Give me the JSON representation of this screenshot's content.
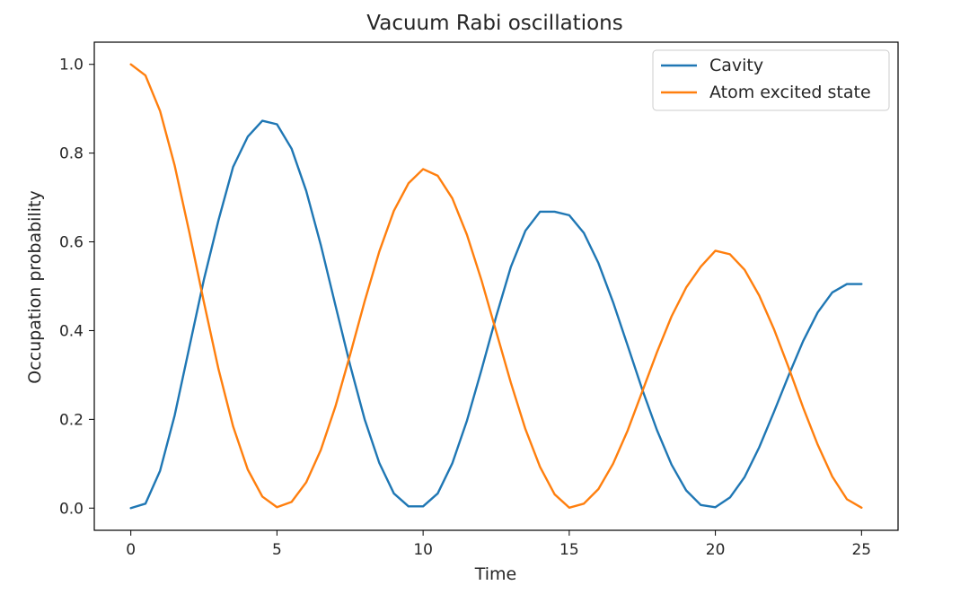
{
  "chart_data": {
    "type": "line",
    "title": "Vacuum Rabi oscillations",
    "xlabel": "Time",
    "ylabel": "Occupation probability",
    "xlim": [
      -1.25,
      26.25
    ],
    "ylim": [
      -0.05,
      1.05
    ],
    "xticks": [
      0,
      5,
      10,
      15,
      20,
      25
    ],
    "xtick_labels": [
      "0",
      "5",
      "10",
      "15",
      "20",
      "25"
    ],
    "yticks": [
      0.0,
      0.2,
      0.4,
      0.6,
      0.8,
      1.0
    ],
    "ytick_labels": [
      "0.0",
      "0.2",
      "0.4",
      "0.6",
      "0.8",
      "1.0"
    ],
    "grid": false,
    "legend_position": "top-right",
    "x": [
      0,
      0.5,
      1,
      1.5,
      2,
      2.5,
      3,
      3.5,
      4,
      4.5,
      5,
      5.5,
      6,
      6.5,
      7,
      7.5,
      8,
      8.5,
      9,
      9.5,
      10,
      10.5,
      11,
      11.5,
      12,
      12.5,
      13,
      13.5,
      14,
      14.5,
      15,
      15.5,
      16,
      16.5,
      17,
      17.5,
      18,
      18.5,
      19,
      19.5,
      20,
      20.5,
      21,
      21.5,
      22,
      22.5,
      23,
      23.5,
      24,
      24.5,
      25
    ],
    "series": [
      {
        "name": "Cavity",
        "color": "#1f77b4",
        "values": [
          0.0,
          0.01,
          0.084,
          0.209,
          0.362,
          0.515,
          0.649,
          0.769,
          0.837,
          0.873,
          0.865,
          0.81,
          0.715,
          0.593,
          0.457,
          0.323,
          0.2,
          0.102,
          0.033,
          0.004,
          0.004,
          0.033,
          0.101,
          0.197,
          0.312,
          0.432,
          0.543,
          0.625,
          0.668,
          0.668,
          0.66,
          0.62,
          0.552,
          0.464,
          0.366,
          0.267,
          0.176,
          0.098,
          0.04,
          0.007,
          0.002,
          0.024,
          0.07,
          0.137,
          0.216,
          0.298,
          0.376,
          0.441,
          0.486,
          0.505,
          0.505
        ]
      },
      {
        "name": "Atom excited state",
        "color": "#ff7f0e",
        "values": [
          1.0,
          0.975,
          0.895,
          0.772,
          0.622,
          0.464,
          0.313,
          0.184,
          0.087,
          0.026,
          0.002,
          0.014,
          0.058,
          0.131,
          0.229,
          0.345,
          0.466,
          0.578,
          0.67,
          0.732,
          0.764,
          0.749,
          0.698,
          0.616,
          0.513,
          0.398,
          0.283,
          0.178,
          0.093,
          0.031,
          0.001,
          0.01,
          0.043,
          0.1,
          0.175,
          0.263,
          0.351,
          0.432,
          0.497,
          0.544,
          0.58,
          0.572,
          0.537,
          0.479,
          0.404,
          0.318,
          0.227,
          0.143,
          0.071,
          0.02,
          0.001
        ]
      }
    ]
  }
}
